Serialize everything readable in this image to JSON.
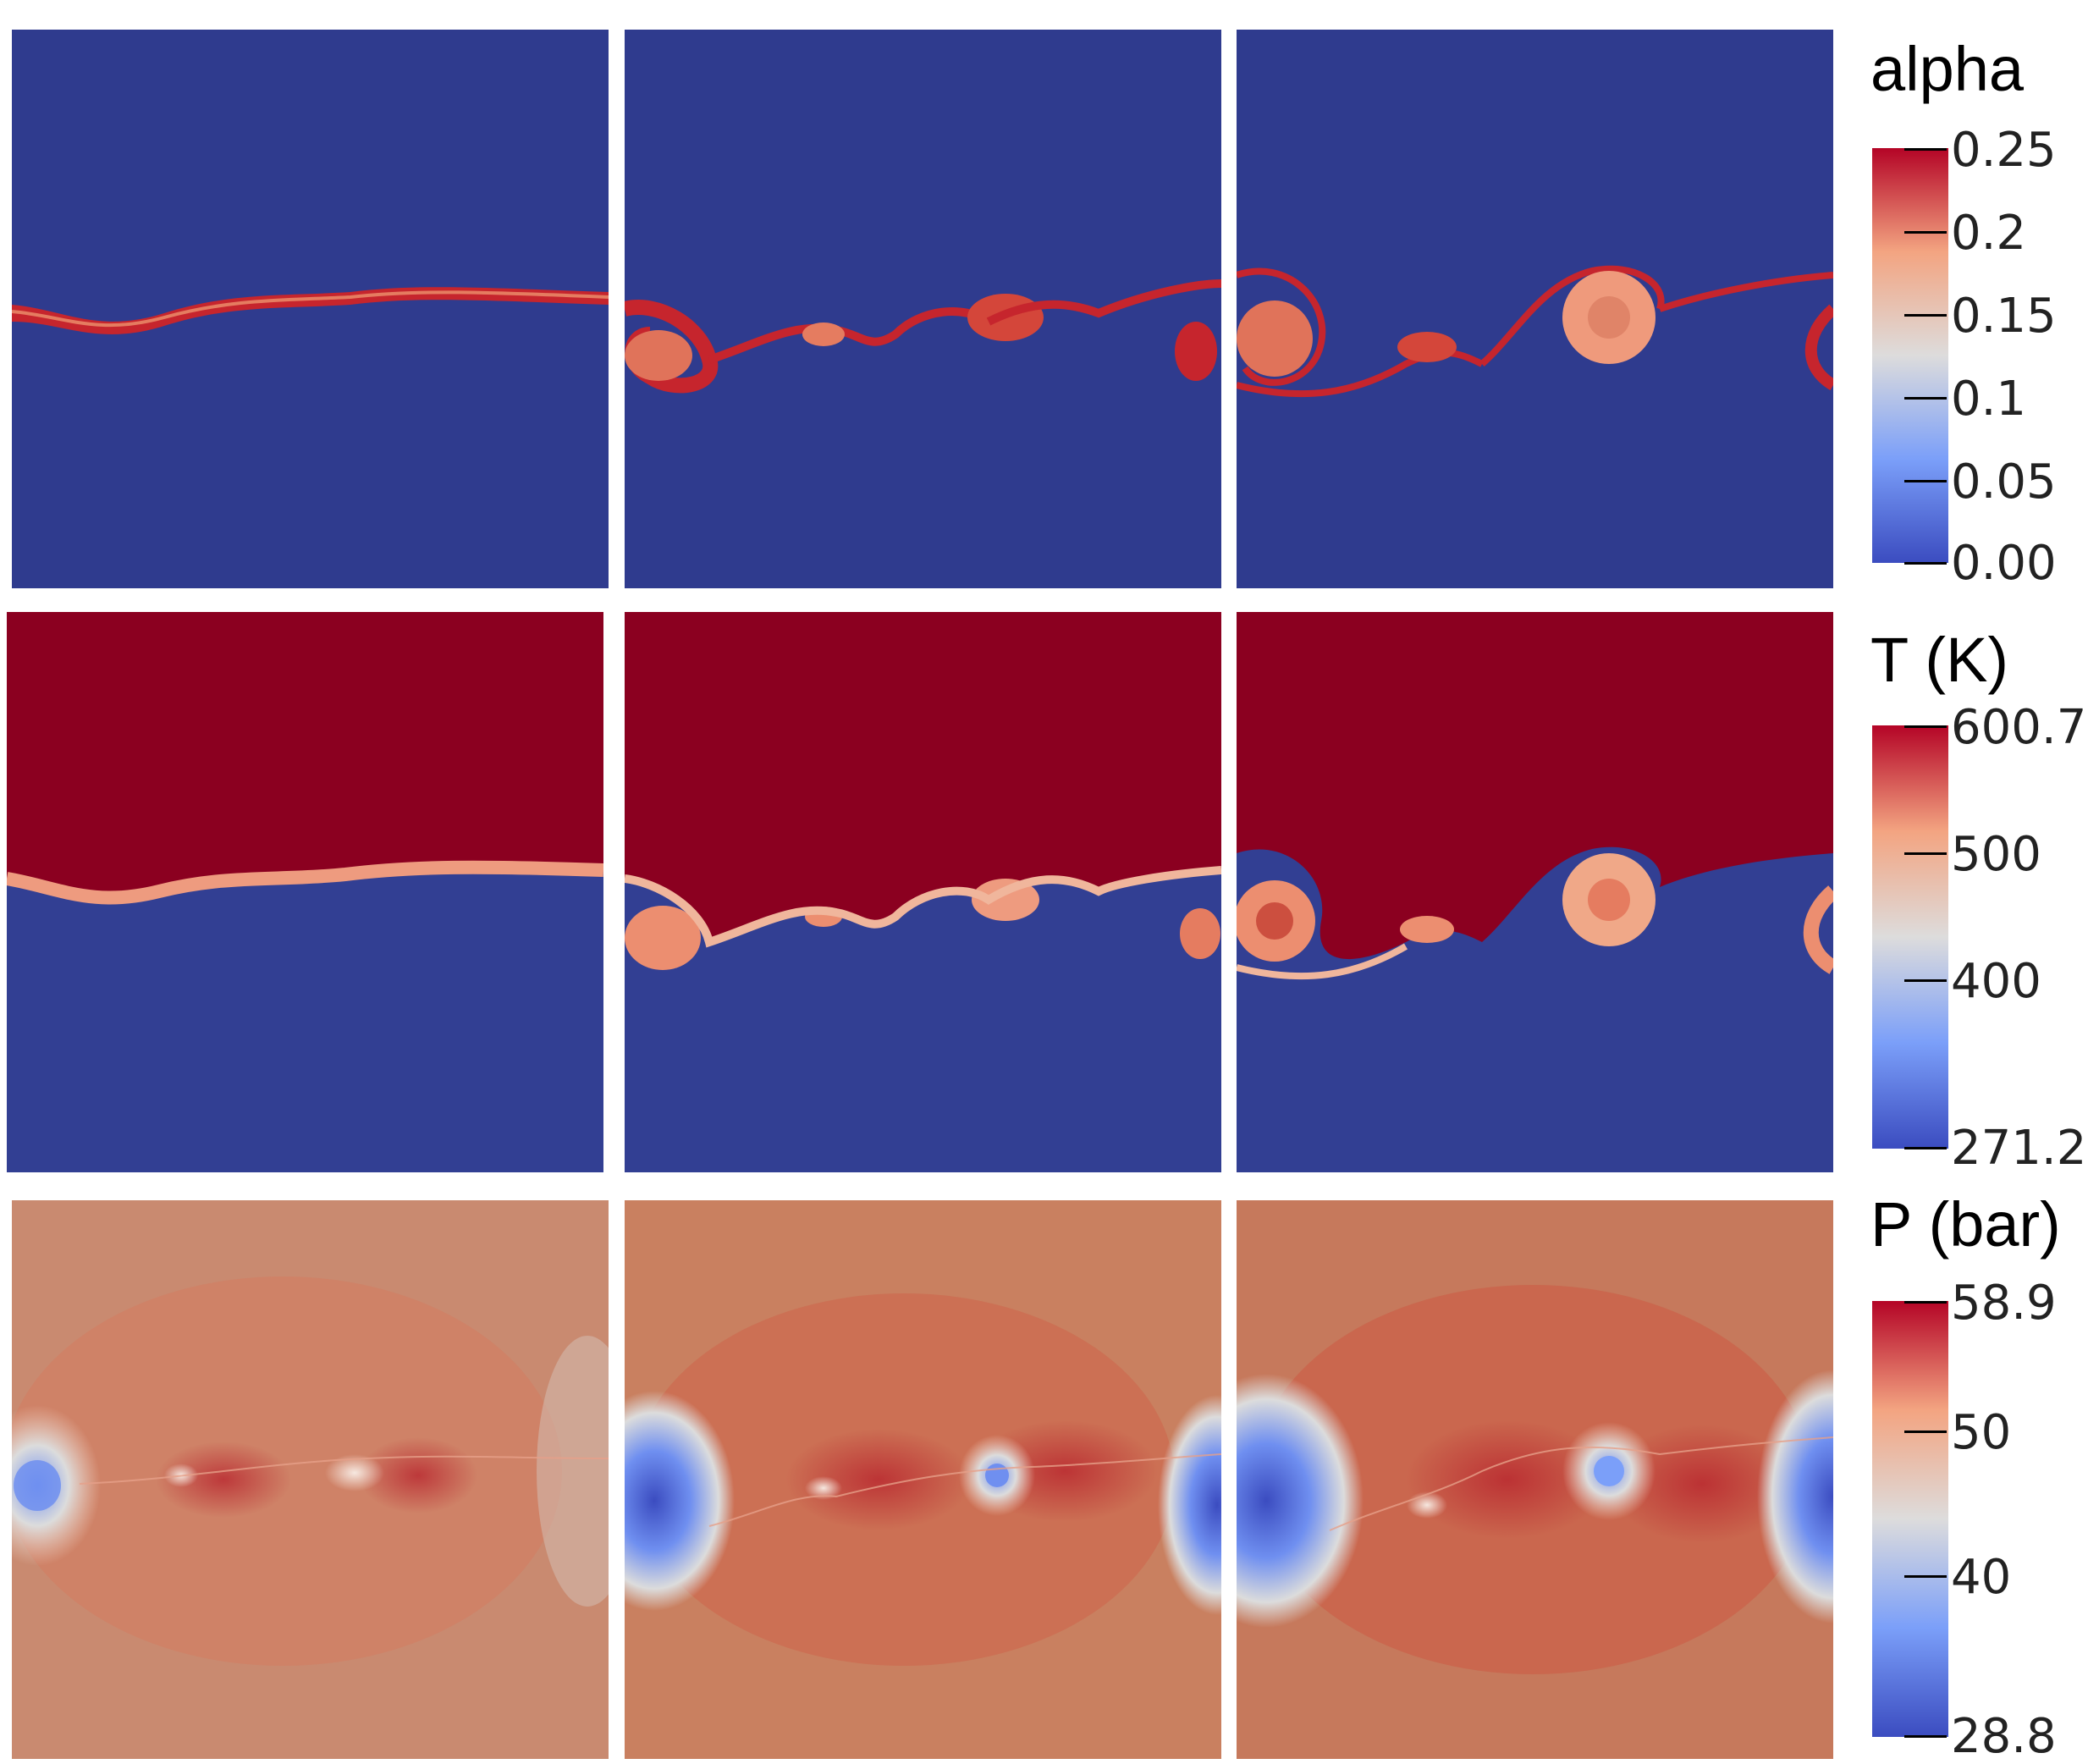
{
  "colors": {
    "cool_blue": "#2f3b8e",
    "hot_red": "#8b0020",
    "mid_white": "#e8dcd8",
    "pressure_base": "#c98a70"
  },
  "colorbars": {
    "alpha": {
      "title": "alpha",
      "ticks": [
        "0.25",
        "0.2",
        "0.15",
        "0.1",
        "0.05",
        "0.00"
      ]
    },
    "temperature": {
      "title": "T (K)",
      "ticks": [
        "600.7",
        "500",
        "400",
        "271.2"
      ]
    },
    "pressure": {
      "title": "P (bar)",
      "ticks": [
        "58.9",
        "50",
        "40",
        "28.8"
      ]
    }
  },
  "rows": [
    {
      "field": "alpha",
      "panels": [
        "alpha-t1",
        "alpha-t2",
        "alpha-t3"
      ]
    },
    {
      "field": "temperature",
      "panels": [
        "temperature-t1",
        "temperature-t2",
        "temperature-t3"
      ]
    },
    {
      "field": "pressure",
      "panels": [
        "pressure-t1",
        "pressure-t2",
        "pressure-t3"
      ]
    }
  ]
}
